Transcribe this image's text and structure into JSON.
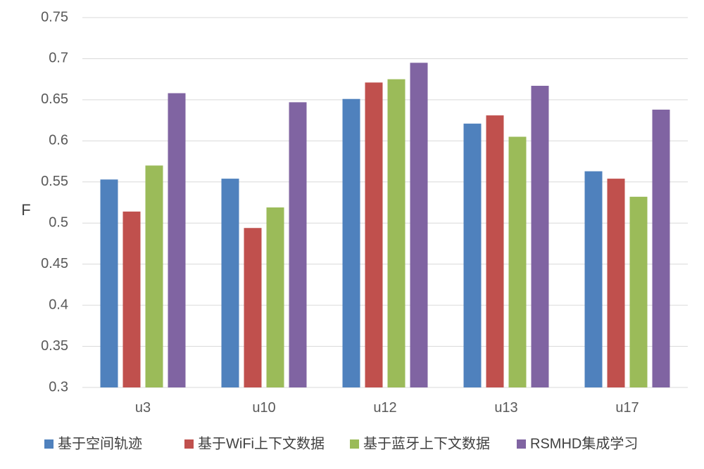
{
  "chart_data": {
    "type": "bar",
    "title": "",
    "xlabel": "",
    "ylabel": "F",
    "ylim": [
      0.3,
      0.75
    ],
    "yticks": [
      "0.3",
      "0.35",
      "0.4",
      "0.45",
      "0.5",
      "0.55",
      "0.6",
      "0.65",
      "0.7",
      "0.75"
    ],
    "grid": true,
    "legend_position": "bottom",
    "categories": [
      "u3",
      "u10",
      "u12",
      "u13",
      "u17"
    ],
    "series": [
      {
        "name": "基于空间轨迹",
        "color": "#4F81BD",
        "values": [
          0.553,
          0.554,
          0.651,
          0.621,
          0.563
        ]
      },
      {
        "name": "基于WiFi上下文数据",
        "color": "#C0504D",
        "values": [
          0.514,
          0.494,
          0.671,
          0.631,
          0.554
        ]
      },
      {
        "name": "基于蓝牙上下文数据",
        "color": "#9BBB59",
        "values": [
          0.57,
          0.519,
          0.675,
          0.605,
          0.532
        ]
      },
      {
        "name": "RSMHD集成学习",
        "color": "#8064A2",
        "values": [
          0.658,
          0.647,
          0.695,
          0.667,
          0.638
        ]
      }
    ]
  }
}
